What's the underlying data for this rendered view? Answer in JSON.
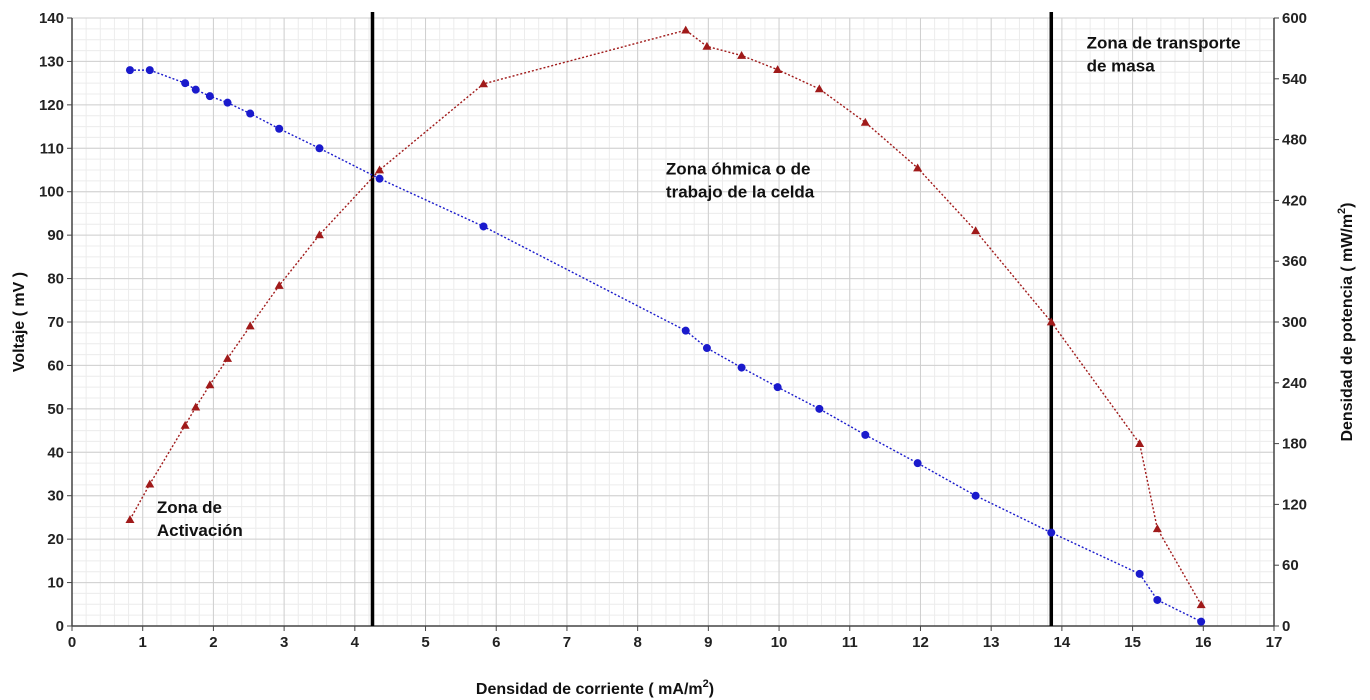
{
  "chart_data": {
    "type": "line",
    "xlabel": "Densidad de corriente",
    "xunit": "( mA/m",
    "xunit_sup": "2",
    "xunit_close": ")",
    "ylabel_left": "Voltaje ( mV )",
    "ylabel_right": "Densidad de potencia",
    "yunit_right": "( mW/m",
    "yunit_right_sup": "2",
    "yunit_right_close": ")",
    "xlim": [
      0,
      17
    ],
    "ylim_left": [
      0,
      140
    ],
    "ylim_right": [
      0,
      600
    ],
    "x_ticks": [
      0,
      1,
      2,
      3,
      4,
      5,
      6,
      7,
      8,
      9,
      10,
      11,
      12,
      13,
      14,
      15,
      16,
      17
    ],
    "y_left_ticks": [
      0,
      10,
      20,
      30,
      40,
      50,
      60,
      70,
      80,
      90,
      100,
      110,
      120,
      130,
      140
    ],
    "y_right_ticks": [
      0,
      60,
      120,
      180,
      240,
      300,
      360,
      420,
      480,
      540,
      600
    ],
    "grid": true,
    "vertical_lines": [
      4.25,
      13.85
    ],
    "annotations": [
      {
        "lines": [
          "Zona de",
          "Activación"
        ],
        "x": 1.2,
        "y": 26
      },
      {
        "lines": [
          "Zona óhmica o de",
          "trabajo de la celda"
        ],
        "x": 8.4,
        "y": 104
      },
      {
        "lines": [
          "Zona de transporte",
          "de masa"
        ],
        "x": 14.35,
        "y": 133
      }
    ],
    "series": [
      {
        "axis": "left",
        "color": "#1a1acc",
        "marker": "circle",
        "x": [
          0.82,
          1.1,
          1.6,
          1.75,
          1.95,
          2.2,
          2.52,
          2.93,
          3.5,
          4.35,
          5.82,
          8.68,
          8.98,
          9.47,
          9.98,
          10.57,
          11.22,
          11.96,
          12.78,
          13.85,
          15.1,
          15.35,
          15.97
        ],
        "y": [
          128,
          128,
          125,
          123.5,
          122,
          120.5,
          118,
          114.5,
          110,
          103,
          92,
          68,
          64,
          59.5,
          55,
          50,
          44,
          37.5,
          30,
          21.5,
          12,
          6,
          1
        ]
      },
      {
        "axis": "right",
        "color": "#a01a1a",
        "marker": "triangle",
        "x": [
          0.82,
          1.1,
          1.6,
          1.75,
          1.95,
          2.2,
          2.52,
          2.93,
          3.5,
          4.35,
          5.82,
          8.68,
          8.98,
          9.47,
          9.98,
          10.57,
          11.22,
          11.96,
          12.78,
          13.85,
          15.1,
          15.35,
          15.97
        ],
        "y": [
          105,
          140,
          198,
          216,
          238,
          264,
          296,
          336,
          386,
          450,
          535,
          588,
          572,
          563,
          549,
          530,
          497,
          452,
          390,
          300,
          180,
          96,
          21
        ]
      }
    ]
  }
}
